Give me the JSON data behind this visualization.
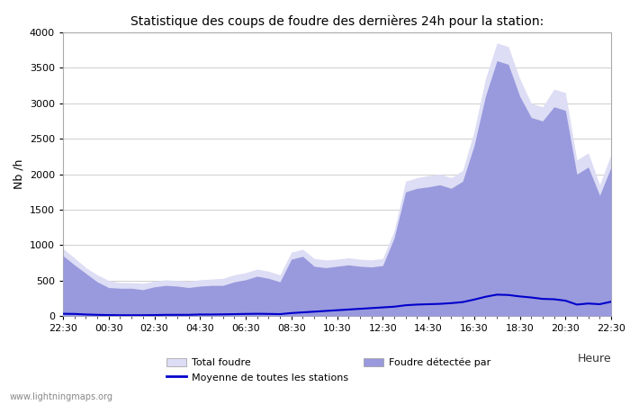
{
  "title": "Statistique des coups de foudre des dernières 24h pour la station:",
  "xlabel": "Heure",
  "ylabel": "Nb /h",
  "xlim": [
    0,
    48
  ],
  "ylim": [
    0,
    4000
  ],
  "yticks": [
    0,
    500,
    1000,
    1500,
    2000,
    2500,
    3000,
    3500,
    4000
  ],
  "xtick_labels": [
    "22:30",
    "00:30",
    "02:30",
    "04:30",
    "06:30",
    "08:30",
    "10:30",
    "12:30",
    "14:30",
    "16:30",
    "18:30",
    "20:30",
    "22:30"
  ],
  "xtick_positions": [
    0,
    4,
    8,
    12,
    16,
    20,
    24,
    28,
    32,
    36,
    40,
    44,
    48
  ],
  "bg_color": "#ffffff",
  "plot_bg_color": "#ffffff",
  "grid_color": "#c8c8c8",
  "fill_total_color": "#ddddf5",
  "fill_detected_color": "#9999dd",
  "line_color": "#0000cc",
  "watermark": "www.lightningmaps.org",
  "legend_total": "Total foudre",
  "legend_detected": "Foudre détectée par",
  "legend_moyenne": "Moyenne de toutes les stations",
  "total_foudre": [
    950,
    820,
    680,
    580,
    500,
    470,
    470,
    460,
    490,
    510,
    500,
    490,
    510,
    520,
    530,
    580,
    610,
    660,
    630,
    580,
    900,
    940,
    810,
    790,
    800,
    820,
    800,
    790,
    810,
    1200,
    1900,
    1950,
    1980,
    2000,
    1950,
    2050,
    2600,
    3350,
    3850,
    3800,
    3350,
    3000,
    2950,
    3200,
    3150,
    2200,
    2300,
    1850,
    2280
  ],
  "foudre_detectee": [
    850,
    720,
    600,
    480,
    400,
    390,
    390,
    370,
    410,
    430,
    420,
    400,
    420,
    430,
    430,
    480,
    510,
    560,
    530,
    480,
    800,
    840,
    700,
    680,
    700,
    720,
    700,
    690,
    710,
    1100,
    1750,
    1800,
    1820,
    1850,
    1800,
    1900,
    2400,
    3100,
    3600,
    3550,
    3100,
    2800,
    2750,
    2950,
    2900,
    2000,
    2100,
    1700,
    2100
  ],
  "moyenne": [
    30,
    28,
    20,
    15,
    12,
    10,
    10,
    10,
    12,
    15,
    15,
    15,
    20,
    20,
    22,
    25,
    28,
    30,
    28,
    25,
    40,
    50,
    60,
    70,
    80,
    90,
    100,
    110,
    120,
    130,
    150,
    160,
    165,
    170,
    180,
    195,
    230,
    270,
    300,
    295,
    275,
    260,
    240,
    235,
    215,
    160,
    175,
    165,
    200
  ]
}
